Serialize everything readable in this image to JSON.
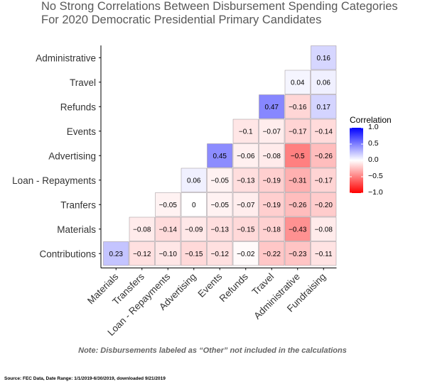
{
  "chart_data": {
    "type": "heatmap",
    "title": "No Strong Correlations Between Disbursement Spending Categories\nFor 2020 Democratic Presidential Primary Candidates",
    "x_categories": [
      "Materials",
      "Transfers",
      "Loan - Repayments",
      "Advertising",
      "Events",
      "Refunds",
      "Travel",
      "Administrative",
      "Fundraising"
    ],
    "y_categories": [
      "Contributions",
      "Materials",
      "Tranfers",
      "Loan - Repayments",
      "Advertising",
      "Events",
      "Refunds",
      "Travel",
      "Administrative"
    ],
    "cells": [
      {
        "row": "Administrative",
        "col": "Fundraising",
        "value": 0.16,
        "label": "0.16"
      },
      {
        "row": "Travel",
        "col": "Administrative",
        "value": 0.04,
        "label": "0.04"
      },
      {
        "row": "Travel",
        "col": "Fundraising",
        "value": 0.06,
        "label": "0.06"
      },
      {
        "row": "Refunds",
        "col": "Travel",
        "value": 0.47,
        "label": "0.47"
      },
      {
        "row": "Refunds",
        "col": "Administrative",
        "value": -0.16,
        "label": "−0.16"
      },
      {
        "row": "Refunds",
        "col": "Fundraising",
        "value": 0.17,
        "label": "0.17"
      },
      {
        "row": "Events",
        "col": "Refunds",
        "value": -0.1,
        "label": "−0.1"
      },
      {
        "row": "Events",
        "col": "Travel",
        "value": -0.07,
        "label": "−0.07"
      },
      {
        "row": "Events",
        "col": "Administrative",
        "value": -0.17,
        "label": "−0.17"
      },
      {
        "row": "Events",
        "col": "Fundraising",
        "value": -0.14,
        "label": "−0.14"
      },
      {
        "row": "Advertising",
        "col": "Events",
        "value": 0.45,
        "label": "0.45"
      },
      {
        "row": "Advertising",
        "col": "Refunds",
        "value": -0.06,
        "label": "−0.06"
      },
      {
        "row": "Advertising",
        "col": "Travel",
        "value": -0.08,
        "label": "−0.08"
      },
      {
        "row": "Advertising",
        "col": "Administrative",
        "value": -0.5,
        "label": "−0.5"
      },
      {
        "row": "Advertising",
        "col": "Fundraising",
        "value": -0.26,
        "label": "−0.26"
      },
      {
        "row": "Loan - Repayments",
        "col": "Advertising",
        "value": 0.06,
        "label": "0.06"
      },
      {
        "row": "Loan - Repayments",
        "col": "Events",
        "value": -0.05,
        "label": "−0.05"
      },
      {
        "row": "Loan - Repayments",
        "col": "Refunds",
        "value": -0.13,
        "label": "−0.13"
      },
      {
        "row": "Loan - Repayments",
        "col": "Travel",
        "value": -0.19,
        "label": "−0.19"
      },
      {
        "row": "Loan - Repayments",
        "col": "Administrative",
        "value": -0.31,
        "label": "−0.31"
      },
      {
        "row": "Loan - Repayments",
        "col": "Fundraising",
        "value": -0.17,
        "label": "−0.17"
      },
      {
        "row": "Tranfers",
        "col": "Loan - Repayments",
        "value": -0.05,
        "label": "−0.05"
      },
      {
        "row": "Tranfers",
        "col": "Advertising",
        "value": 0,
        "label": "0"
      },
      {
        "row": "Tranfers",
        "col": "Events",
        "value": -0.05,
        "label": "−0.05"
      },
      {
        "row": "Tranfers",
        "col": "Refunds",
        "value": -0.07,
        "label": "−0.07"
      },
      {
        "row": "Tranfers",
        "col": "Travel",
        "value": -0.19,
        "label": "−0.19"
      },
      {
        "row": "Tranfers",
        "col": "Administrative",
        "value": -0.26,
        "label": "−0.26"
      },
      {
        "row": "Tranfers",
        "col": "Fundraising",
        "value": -0.2,
        "label": "−0.20"
      },
      {
        "row": "Materials",
        "col": "Transfers",
        "value": -0.08,
        "label": "−0.08"
      },
      {
        "row": "Materials",
        "col": "Loan - Repayments",
        "value": -0.14,
        "label": "−0.14"
      },
      {
        "row": "Materials",
        "col": "Advertising",
        "value": -0.09,
        "label": "−0.09"
      },
      {
        "row": "Materials",
        "col": "Events",
        "value": -0.13,
        "label": "−0.13"
      },
      {
        "row": "Materials",
        "col": "Refunds",
        "value": -0.15,
        "label": "−0.15"
      },
      {
        "row": "Materials",
        "col": "Travel",
        "value": -0.18,
        "label": "−0.18"
      },
      {
        "row": "Materials",
        "col": "Administrative",
        "value": -0.43,
        "label": "−0.43"
      },
      {
        "row": "Materials",
        "col": "Fundraising",
        "value": -0.08,
        "label": "−0.08"
      },
      {
        "row": "Contributions",
        "col": "Materials",
        "value": 0.23,
        "label": "0.23"
      },
      {
        "row": "Contributions",
        "col": "Transfers",
        "value": -0.12,
        "label": "−0.12"
      },
      {
        "row": "Contributions",
        "col": "Loan - Repayments",
        "value": -0.1,
        "label": "−0.10"
      },
      {
        "row": "Contributions",
        "col": "Advertising",
        "value": -0.15,
        "label": "−0.15"
      },
      {
        "row": "Contributions",
        "col": "Events",
        "value": -0.12,
        "label": "−0.12"
      },
      {
        "row": "Contributions",
        "col": "Refunds",
        "value": -0.02,
        "label": "−0.02"
      },
      {
        "row": "Contributions",
        "col": "Travel",
        "value": -0.22,
        "label": "−0.22"
      },
      {
        "row": "Contributions",
        "col": "Administrative",
        "value": -0.23,
        "label": "−0.23"
      },
      {
        "row": "Contributions",
        "col": "Fundraising",
        "value": -0.11,
        "label": "−0.11"
      }
    ],
    "color_scale": {
      "domain": [
        -1,
        0,
        1
      ],
      "colors": [
        "#ff0000",
        "#ffffff",
        "#0000ff"
      ],
      "legend_title": "Correlation",
      "legend_ticks": [
        "1.0",
        "0.5",
        "0.0",
        "−0.5",
        "−1.0"
      ],
      "legend_tick_values": [
        1,
        0.5,
        0,
        -0.5,
        -1
      ],
      "legend_placement": "right"
    },
    "grid": false
  },
  "note": "Note: Disbursements labeled as “Other” not included in the calculations",
  "source": "Source: FEC Data, Date Range: 1/1/2019-6/30/2019, downloaded 9/21/2019"
}
